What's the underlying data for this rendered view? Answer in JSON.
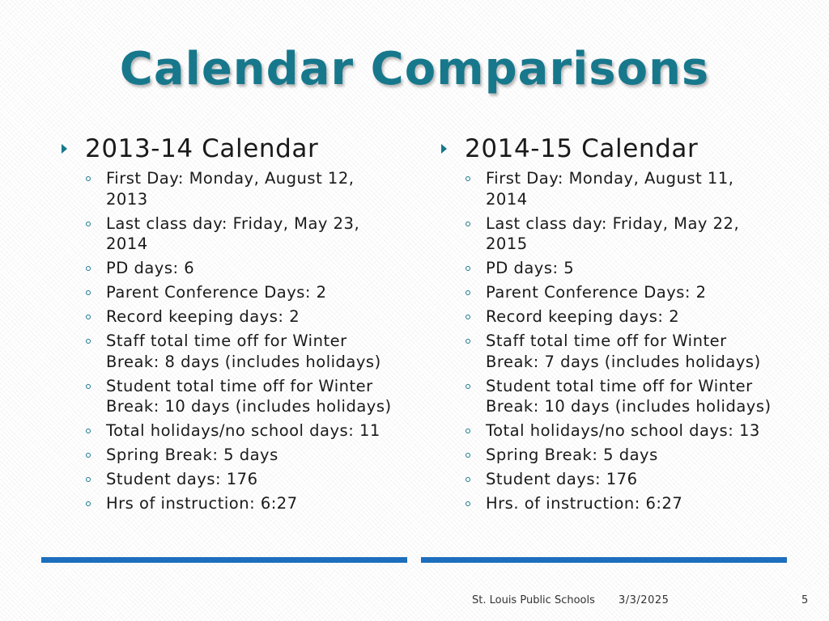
{
  "title": "Calendar Comparisons",
  "columns": [
    {
      "heading": "2013-14 Calendar",
      "items": [
        [
          "First Day:  Monday, August 12,",
          "2013"
        ],
        [
          "Last class day:  Friday, May 23,",
          "2014"
        ],
        [
          "PD days:  6"
        ],
        [
          "Parent Conference Days:  2"
        ],
        [
          "Record keeping days:  2"
        ],
        [
          "Staff total time off for Winter",
          "Break:  8 days (includes holidays)"
        ],
        [
          "Student total time off for Winter",
          "Break:  10 days (includes holidays)"
        ],
        [
          "Total holidays/no school days:  11"
        ],
        [
          "Spring Break:  5 days"
        ],
        [
          "Student days:  176"
        ],
        [
          "Hrs of instruction:  6:27"
        ]
      ]
    },
    {
      "heading": "2014-15 Calendar",
      "items": [
        [
          "First Day:  Monday, August 11,",
          "2014"
        ],
        [
          "Last class day:  Friday, May 22,",
          "2015"
        ],
        [
          "PD days:  5"
        ],
        [
          "Parent Conference Days:  2"
        ],
        [
          "Record keeping days:  2"
        ],
        [
          "Staff total time off for Winter",
          "Break:  7 days (includes holidays)"
        ],
        [
          "Student total time off for Winter",
          "Break:  10 days (includes holidays)"
        ],
        [
          "Total holidays/no school days:  13"
        ],
        [
          "Spring Break:  5 days"
        ],
        [
          "Student days:  176"
        ],
        [
          "Hrs. of instruction:  6:27"
        ]
      ]
    }
  ],
  "footer": {
    "org": "St. Louis Public Schools",
    "date": "3/3/2025",
    "page": "5"
  },
  "colors": {
    "title": "#17788c",
    "rule": "#1d6fbd"
  }
}
